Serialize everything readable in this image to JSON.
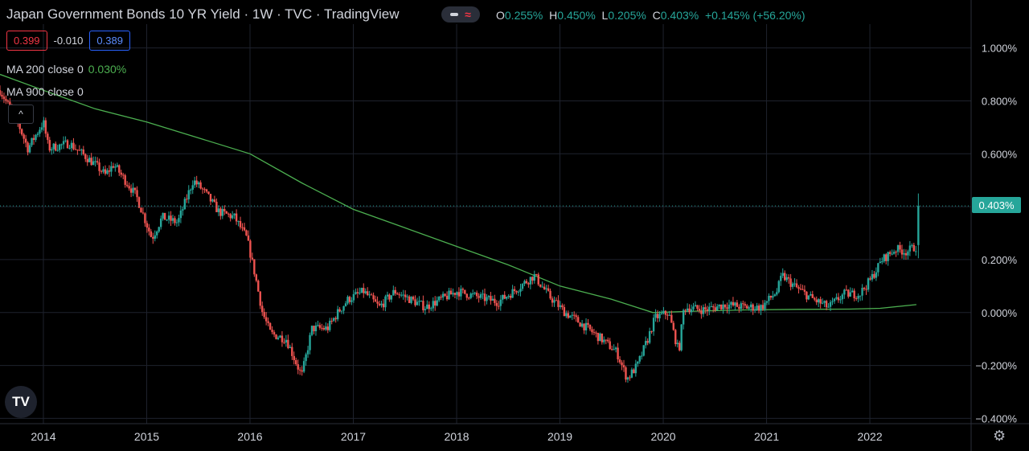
{
  "header": {
    "title": "Japan Government Bonds 10 YR Yield · 1W · TVC · TradingView",
    "ohlc": {
      "o_label": "O",
      "o_value": "0.255%",
      "h_label": "H",
      "h_value": "0.450%",
      "l_label": "L",
      "l_value": "0.205%",
      "c_label": "C",
      "c_value": "0.403%",
      "change": "+0.145% (+56.20%)"
    }
  },
  "quote": {
    "bid": "0.399",
    "spread": "-0.010",
    "ask": "0.389"
  },
  "indicators": [
    {
      "label": "MA 200 close 0",
      "value": "0.030%"
    },
    {
      "label": "MA 900 close 0",
      "value": ""
    }
  ],
  "logo": "TV",
  "current_price_label": "0.403%",
  "colors": {
    "up": "#26a69a",
    "down": "#ef5350",
    "ma": "#4caf50",
    "background": "#000000",
    "grid": "#1e222d"
  },
  "icons": {
    "collapse": "chevron-up-icon",
    "settings": "gear-icon",
    "compare": "wave-icon"
  },
  "chart_data": {
    "type": "candlestick",
    "title": "Japan Government Bonds 10 YR Yield",
    "interval": "1W",
    "x_ticks": [
      "2014",
      "2015",
      "2016",
      "2017",
      "2018",
      "2019",
      "2020",
      "2021",
      "2022"
    ],
    "y_ticks": [
      "1.000%",
      "0.800%",
      "0.600%",
      "0.400%",
      "0.200%",
      "0.000%",
      "−0.200%",
      "−0.400%"
    ],
    "y_tick_values": [
      1.0,
      0.8,
      0.6,
      0.4,
      0.2,
      0.0,
      -0.2,
      -0.4
    ],
    "ylim": [
      -0.42,
      1.09
    ],
    "xlim": [
      2013.58,
      2022.98
    ],
    "grid": true,
    "last": {
      "open": 0.255,
      "high": 0.45,
      "low": 0.205,
      "close": 0.403
    },
    "close_path": [
      [
        2013.58,
        0.84
      ],
      [
        2013.75,
        0.72
      ],
      [
        2013.85,
        0.62
      ],
      [
        2014.0,
        0.72
      ],
      [
        2014.05,
        0.62
      ],
      [
        2014.25,
        0.64
      ],
      [
        2014.5,
        0.56
      ],
      [
        2014.6,
        0.52
      ],
      [
        2014.68,
        0.56
      ],
      [
        2014.9,
        0.44
      ],
      [
        2015.05,
        0.28
      ],
      [
        2015.15,
        0.36
      ],
      [
        2015.3,
        0.34
      ],
      [
        2015.45,
        0.5
      ],
      [
        2015.55,
        0.46
      ],
      [
        2015.7,
        0.38
      ],
      [
        2015.85,
        0.36
      ],
      [
        2015.97,
        0.28
      ],
      [
        2016.05,
        0.14
      ],
      [
        2016.12,
        0.0
      ],
      [
        2016.2,
        -0.08
      ],
      [
        2016.35,
        -0.1
      ],
      [
        2016.5,
        -0.24
      ],
      [
        2016.6,
        -0.06
      ],
      [
        2016.75,
        -0.06
      ],
      [
        2016.85,
        0.0
      ],
      [
        2016.95,
        0.05
      ],
      [
        2017.1,
        0.08
      ],
      [
        2017.25,
        0.02
      ],
      [
        2017.4,
        0.08
      ],
      [
        2017.55,
        0.05
      ],
      [
        2017.7,
        0.02
      ],
      [
        2017.85,
        0.05
      ],
      [
        2018.0,
        0.08
      ],
      [
        2018.2,
        0.06
      ],
      [
        2018.4,
        0.04
      ],
      [
        2018.55,
        0.08
      ],
      [
        2018.75,
        0.14
      ],
      [
        2018.9,
        0.06
      ],
      [
        2019.05,
        0.0
      ],
      [
        2019.2,
        -0.04
      ],
      [
        2019.4,
        -0.1
      ],
      [
        2019.55,
        -0.15
      ],
      [
        2019.65,
        -0.25
      ],
      [
        2019.75,
        -0.2
      ],
      [
        2019.85,
        -0.1
      ],
      [
        2019.92,
        -0.02
      ],
      [
        2020.05,
        0.0
      ],
      [
        2020.15,
        -0.15
      ],
      [
        2020.2,
        0.02
      ],
      [
        2020.4,
        0.01
      ],
      [
        2020.6,
        0.03
      ],
      [
        2020.8,
        0.02
      ],
      [
        2020.95,
        0.02
      ],
      [
        2021.1,
        0.08
      ],
      [
        2021.15,
        0.14
      ],
      [
        2021.3,
        0.09
      ],
      [
        2021.45,
        0.05
      ],
      [
        2021.6,
        0.02
      ],
      [
        2021.75,
        0.07
      ],
      [
        2021.9,
        0.07
      ],
      [
        2022.0,
        0.12
      ],
      [
        2022.12,
        0.2
      ],
      [
        2022.25,
        0.24
      ],
      [
        2022.35,
        0.23
      ],
      [
        2022.45,
        0.25
      ]
    ],
    "ma200": [
      [
        2013.58,
        0.9
      ],
      [
        2014.0,
        0.84
      ],
      [
        2014.5,
        0.77
      ],
      [
        2015.0,
        0.72
      ],
      [
        2015.5,
        0.66
      ],
      [
        2016.0,
        0.6
      ],
      [
        2016.5,
        0.49
      ],
      [
        2017.0,
        0.39
      ],
      [
        2017.5,
        0.32
      ],
      [
        2018.0,
        0.25
      ],
      [
        2018.5,
        0.18
      ],
      [
        2019.0,
        0.1
      ],
      [
        2019.5,
        0.05
      ],
      [
        2019.9,
        0.0
      ],
      [
        2020.3,
        0.005
      ],
      [
        2020.8,
        0.01
      ],
      [
        2021.3,
        0.012
      ],
      [
        2021.8,
        0.013
      ],
      [
        2022.1,
        0.016
      ],
      [
        2022.45,
        0.03
      ]
    ]
  }
}
